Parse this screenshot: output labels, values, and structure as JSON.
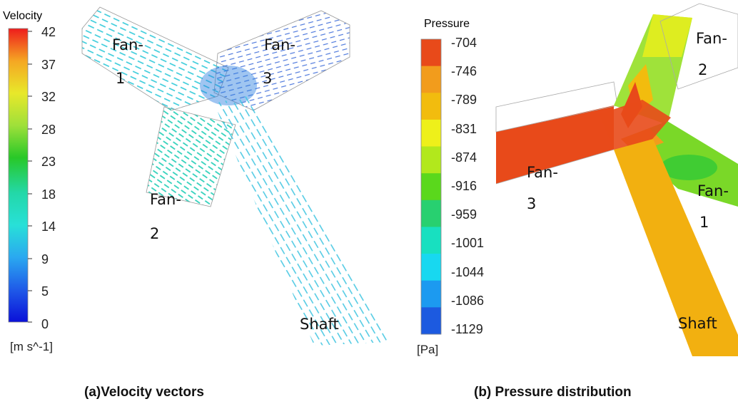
{
  "panel_a": {
    "legend_title": "Velocity",
    "unit": "[m s^-1]",
    "ticks": [
      "42",
      "37",
      "32",
      "28",
      "23",
      "18",
      "14",
      "9",
      "5",
      "0"
    ],
    "labels": {
      "fan1_a": "Fan-",
      "fan1_b": "1",
      "fan3_a": "Fan-",
      "fan3_b": "3",
      "fan2_a": "Fan-",
      "fan2_b": "2",
      "shaft": "Shaft"
    },
    "caption": "(a)Velocity vectors"
  },
  "panel_b": {
    "legend_title": "Pressure",
    "unit": "[Pa]",
    "ticks": [
      "-704",
      "-746",
      "-789",
      "-831",
      "-874",
      "-916",
      "-959",
      "-1001",
      "-1044",
      "-1086",
      "-1129"
    ],
    "labels": {
      "fan2_a": "Fan-",
      "fan2_b": "2",
      "fan3_a": "Fan-",
      "fan3_b": "3",
      "fan1_a": "Fan-",
      "fan1_b": "1",
      "shaft": "Shaft"
    },
    "caption": "(b) Pressure distribution"
  },
  "colors": {
    "velocity_bands": [
      "#ee1c1c",
      "#f5a623",
      "#e8e82a",
      "#9fe03a",
      "#28c828",
      "#23d8a8",
      "#28e0d8",
      "#2aa8f0",
      "#1f5ae8",
      "#0a10d8"
    ],
    "pressure_bands": [
      "#e84a1a",
      "#f29c1c",
      "#f2bc0e",
      "#eef01a",
      "#b2e81c",
      "#5ad81c",
      "#28d070",
      "#18e0c0",
      "#18d8f0",
      "#1c9af0",
      "#1c5ae0"
    ]
  }
}
